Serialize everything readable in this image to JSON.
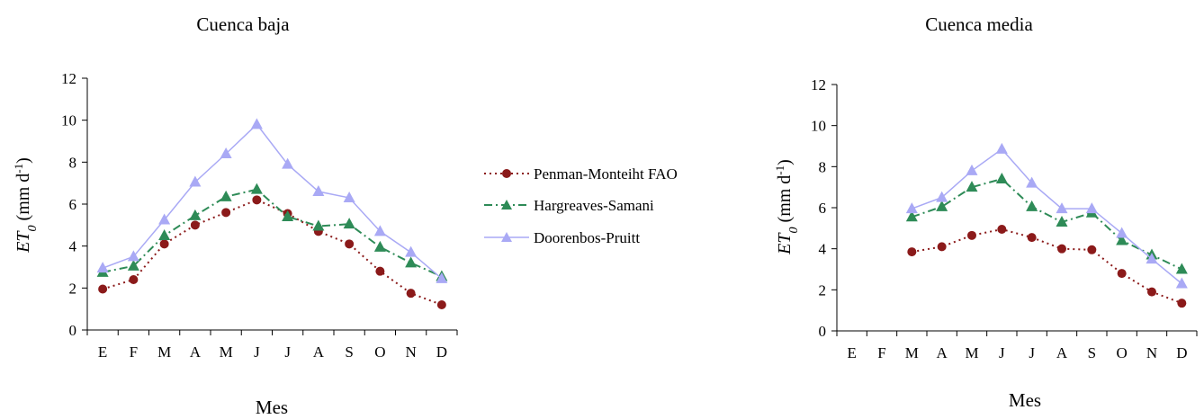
{
  "chart_data": [
    {
      "type": "line",
      "title": "Cuenca baja",
      "xlabel": "Mes",
      "ylabel_prefix": "ET",
      "ylabel_sub": "0",
      "ylabel_units": " (mm d",
      "ylabel_sup": "-1",
      "ylabel_close": ")",
      "categories": [
        "E",
        "F",
        "M",
        "A",
        "M",
        "J",
        "J",
        "A",
        "S",
        "O",
        "N",
        "D"
      ],
      "ylim": [
        0,
        12
      ],
      "yticks": [
        "0",
        "2",
        "4",
        "6",
        "8",
        "10",
        "12"
      ],
      "grid": false,
      "series": [
        {
          "name": "Penman-Monteiht FAO",
          "values": [
            1.95,
            2.4,
            4.1,
            5.0,
            5.6,
            6.2,
            5.55,
            4.7,
            4.1,
            2.8,
            1.75,
            1.2
          ]
        },
        {
          "name": "Hargreaves-Samani",
          "values": [
            2.75,
            3.05,
            4.5,
            5.45,
            6.35,
            6.7,
            5.4,
            4.95,
            5.05,
            3.95,
            3.2,
            2.55
          ]
        },
        {
          "name": "Doorenbos-Pruitt",
          "values": [
            2.95,
            3.5,
            5.25,
            7.05,
            8.4,
            9.8,
            7.9,
            6.6,
            6.3,
            4.7,
            3.7,
            2.45
          ]
        }
      ]
    },
    {
      "type": "line",
      "title": "Cuenca media",
      "xlabel": "Mes",
      "ylabel_prefix": "ET",
      "ylabel_sub": "0",
      "ylabel_units": " (mm d",
      "ylabel_sup": "-1",
      "ylabel_close": ")",
      "categories": [
        "E",
        "F",
        "M",
        "A",
        "M",
        "J",
        "J",
        "A",
        "S",
        "O",
        "N",
        "D"
      ],
      "ylim": [
        0,
        12
      ],
      "yticks": [
        "0",
        "2",
        "4",
        "6",
        "8",
        "10",
        "12"
      ],
      "grid": false,
      "series": [
        {
          "name": "Penman-Monteiht FAO",
          "values": [
            null,
            null,
            3.85,
            4.1,
            4.65,
            4.95,
            4.55,
            4.0,
            3.95,
            2.8,
            1.9,
            1.35
          ]
        },
        {
          "name": "Hargreaves-Samani",
          "values": [
            null,
            null,
            5.55,
            6.05,
            7.0,
            7.4,
            6.05,
            5.3,
            5.75,
            4.4,
            3.7,
            3.0
          ]
        },
        {
          "name": "Doorenbos-Pruitt",
          "values": [
            null,
            null,
            5.95,
            6.5,
            7.8,
            8.85,
            7.2,
            5.95,
            5.95,
            4.75,
            3.5,
            2.3
          ]
        }
      ]
    }
  ],
  "legend": {
    "placement": "between charts",
    "entries": [
      {
        "label": "Penman-Monteiht FAO",
        "color": "#8b1a1a",
        "marker": "circle",
        "dash": "dotted"
      },
      {
        "label": "Hargreaves-Samani",
        "color": "#2e8b57",
        "marker": "triangle",
        "dash": "dash-dot"
      },
      {
        "label": "Doorenbos-Pruitt",
        "color": "#a9a9f5",
        "marker": "triangle",
        "dash": "solid"
      }
    ]
  }
}
